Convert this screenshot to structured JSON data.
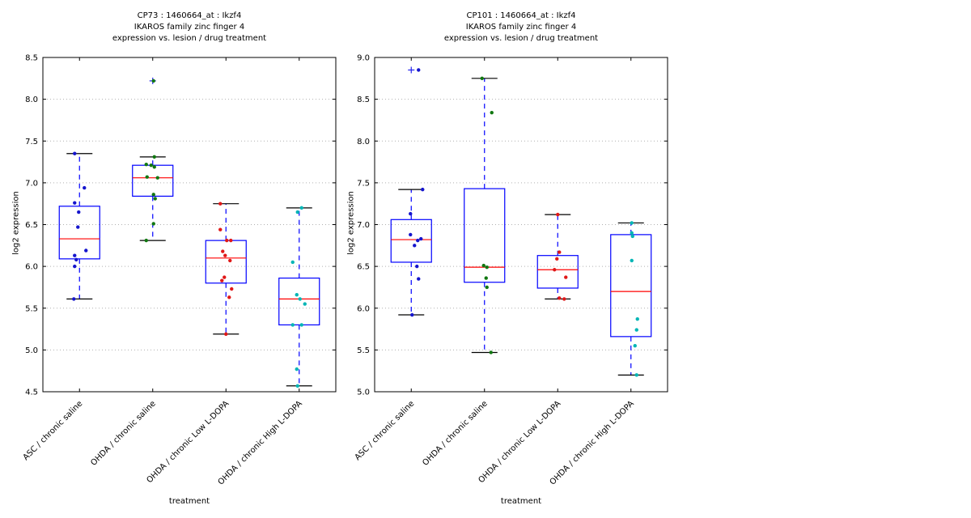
{
  "figure": {
    "background": "#ffffff"
  },
  "style": {
    "box_color": "#0000ff",
    "median_color": "#ff0000",
    "whisker_color": "#0000ff",
    "cap_color": "#000000",
    "flier_color": "#2222ee",
    "grid_color": "#b0b0b0",
    "axis_color": "#000000",
    "text_color": "#000000"
  },
  "chart_data": [
    {
      "type": "box",
      "title_lines": [
        "CP73 : 1460664_at : Ikzf4",
        "IKAROS family zinc finger 4",
        "expression vs. lesion / drug treatment"
      ],
      "xlabel": "treatment",
      "ylabel": "log2 expression",
      "ylim": [
        4.5,
        8.5
      ],
      "yticks": [
        4.5,
        5.0,
        5.5,
        6.0,
        6.5,
        7.0,
        7.5,
        8.0,
        8.5
      ],
      "grid": "horizontal-dotted",
      "categories": [
        "ASC / chronic saline",
        "OHDA / chronic saline",
        "OHDA / chronic Low L-DOPA",
        "OHDA / chronic High L-DOPA"
      ],
      "series": [
        {
          "category": "ASC / chronic saline",
          "point_color": "#1515cd",
          "box": {
            "whisker_low": 5.61,
            "q1": 6.09,
            "median": 6.33,
            "q3": 6.72,
            "whisker_high": 7.35
          },
          "fliers": [],
          "points": [
            [
              -6,
              7.35
            ],
            [
              6,
              6.94
            ],
            [
              -6,
              6.76
            ],
            [
              -1,
              6.65
            ],
            [
              -2,
              6.47
            ],
            [
              8,
              6.19
            ],
            [
              -6,
              6.13
            ],
            [
              -4,
              6.08
            ],
            [
              -6,
              6.0
            ],
            [
              -7,
              5.61
            ]
          ]
        },
        {
          "category": "OHDA / chronic saline",
          "point_color": "#117711",
          "box": {
            "whisker_low": 6.31,
            "q1": 6.84,
            "median": 7.06,
            "q3": 7.21,
            "whisker_high": 7.31
          },
          "fliers": [
            8.22
          ],
          "points": [
            [
              1,
              8.22
            ],
            [
              2,
              7.31
            ],
            [
              -8,
              7.22
            ],
            [
              -2,
              7.21
            ],
            [
              2,
              7.19
            ],
            [
              -7,
              7.07
            ],
            [
              6,
              7.06
            ],
            [
              1,
              6.86
            ],
            [
              3,
              6.81
            ],
            [
              1,
              6.51
            ],
            [
              -8,
              6.31
            ]
          ]
        },
        {
          "category": "OHDA / chronic Low L-DOPA",
          "point_color": "#e01818",
          "box": {
            "whisker_low": 5.19,
            "q1": 5.8,
            "median": 6.1,
            "q3": 6.31,
            "whisker_high": 6.75
          },
          "fliers": [],
          "points": [
            [
              -7,
              6.75
            ],
            [
              -7,
              6.44
            ],
            [
              1,
              6.31
            ],
            [
              6,
              6.31
            ],
            [
              -4,
              6.18
            ],
            [
              -1,
              6.13
            ],
            [
              5,
              6.07
            ],
            [
              -2,
              5.87
            ],
            [
              -5,
              5.83
            ],
            [
              7,
              5.73
            ],
            [
              4,
              5.63
            ],
            [
              0,
              5.19
            ]
          ]
        },
        {
          "category": "OHDA / chronic High L-DOPA",
          "point_color": "#00b5b5",
          "box": {
            "whisker_low": 4.57,
            "q1": 5.3,
            "median": 5.61,
            "q3": 5.86,
            "whisker_high": 6.7
          },
          "fliers": [],
          "points": [
            [
              3,
              6.7
            ],
            [
              -2,
              6.65
            ],
            [
              -8,
              6.05
            ],
            [
              -3,
              5.66
            ],
            [
              1,
              5.61
            ],
            [
              7,
              5.55
            ],
            [
              -8,
              5.3
            ],
            [
              3,
              5.3
            ],
            [
              -3,
              4.77
            ],
            [
              -2,
              4.57
            ]
          ]
        }
      ]
    },
    {
      "type": "box",
      "title_lines": [
        "CP101 : 1460664_at : Ikzf4",
        "IKAROS family zinc finger 4",
        "expression vs. lesion / drug treatment"
      ],
      "xlabel": "treatment",
      "ylabel": "log2 expression",
      "ylim": [
        5.0,
        9.0
      ],
      "yticks": [
        5.0,
        5.5,
        6.0,
        6.5,
        7.0,
        7.5,
        8.0,
        8.5,
        9.0
      ],
      "grid": "horizontal-dotted",
      "categories": [
        "ASC / chronic saline",
        "OHDA / chronic saline",
        "OHDA / chronic Low L-DOPA",
        "OHDA / chronic High L-DOPA"
      ],
      "series": [
        {
          "category": "ASC / chronic saline",
          "point_color": "#1515cd",
          "box": {
            "whisker_low": 5.92,
            "q1": 6.55,
            "median": 6.82,
            "q3": 7.06,
            "whisker_high": 7.42
          },
          "fliers": [
            8.85
          ],
          "points": [
            [
              9,
              8.85
            ],
            [
              14,
              7.42
            ],
            [
              -1,
              7.13
            ],
            [
              -1,
              6.88
            ],
            [
              12,
              6.83
            ],
            [
              8,
              6.81
            ],
            [
              4,
              6.75
            ],
            [
              7,
              6.5
            ],
            [
              9,
              6.35
            ],
            [
              1,
              5.92
            ]
          ]
        },
        {
          "category": "OHDA / chronic saline",
          "point_color": "#117711",
          "box": {
            "whisker_low": 5.47,
            "q1": 6.31,
            "median": 6.49,
            "q3": 7.43,
            "whisker_high": 8.75
          },
          "fliers": [],
          "points": [
            [
              -3,
              8.75
            ],
            [
              9,
              8.34
            ],
            [
              -1,
              6.51
            ],
            [
              3,
              6.49
            ],
            [
              2,
              6.36
            ],
            [
              3,
              6.25
            ],
            [
              8,
              5.47
            ]
          ]
        },
        {
          "category": "OHDA / chronic Low L-DOPA",
          "point_color": "#e01818",
          "box": {
            "whisker_low": 6.11,
            "q1": 6.24,
            "median": 6.46,
            "q3": 6.63,
            "whisker_high": 7.12
          },
          "fliers": [],
          "points": [
            [
              0,
              7.12
            ],
            [
              2,
              6.67
            ],
            [
              -1,
              6.59
            ],
            [
              -4,
              6.46
            ],
            [
              10,
              6.37
            ],
            [
              2,
              6.12
            ],
            [
              8,
              6.11
            ]
          ]
        },
        {
          "category": "OHDA / chronic High L-DOPA",
          "point_color": "#00b5b5",
          "box": {
            "whisker_low": 5.2,
            "q1": 5.66,
            "median": 6.2,
            "q3": 6.88,
            "whisker_high": 7.02
          },
          "fliers": [],
          "points": [
            [
              1,
              7.02
            ],
            [
              1,
              6.9
            ],
            [
              2,
              6.86
            ],
            [
              1,
              6.57
            ],
            [
              8,
              5.87
            ],
            [
              7,
              5.74
            ],
            [
              5,
              5.55
            ],
            [
              7,
              5.2
            ]
          ]
        }
      ]
    }
  ]
}
